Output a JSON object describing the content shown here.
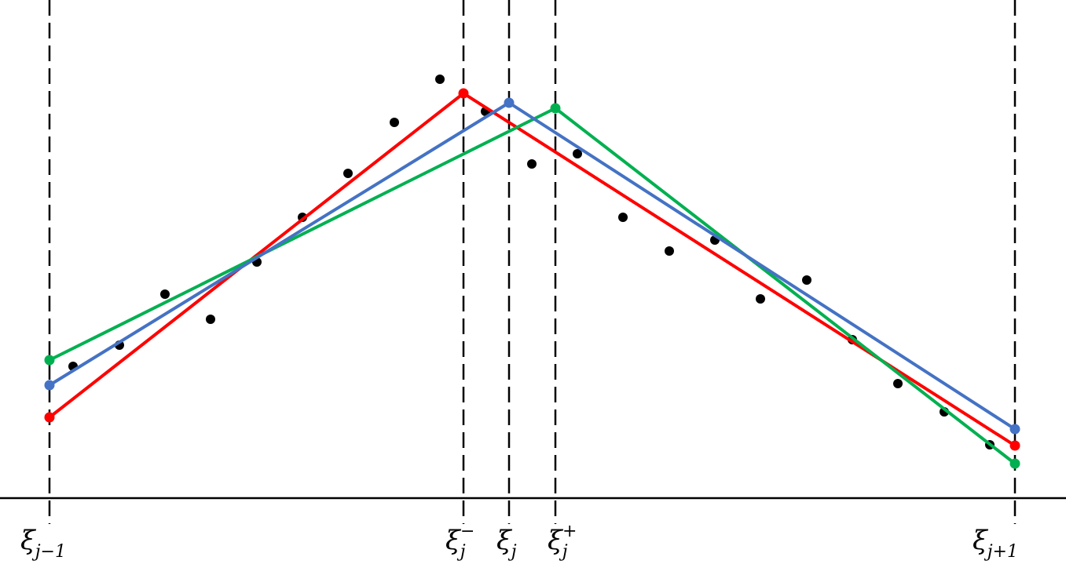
{
  "diagram": {
    "axis_labels": {
      "xi_jm1": {
        "base": "ξ",
        "sub": "j−1",
        "sup": ""
      },
      "xi_j_minus": {
        "base": "ξ",
        "sub": "j",
        "sup": "−"
      },
      "xi_j": {
        "base": "ξ",
        "sub": "j",
        "sup": ""
      },
      "xi_j_plus": {
        "base": "ξ",
        "sub": "j",
        "sup": "+"
      },
      "xi_jp1": {
        "base": "ξ",
        "sub": "j+1",
        "sup": ""
      }
    },
    "colors": {
      "red": "#ff0000",
      "blue": "#4472c4",
      "green": "#00b050",
      "points": "#000000",
      "axis": "#000000"
    }
  }
}
